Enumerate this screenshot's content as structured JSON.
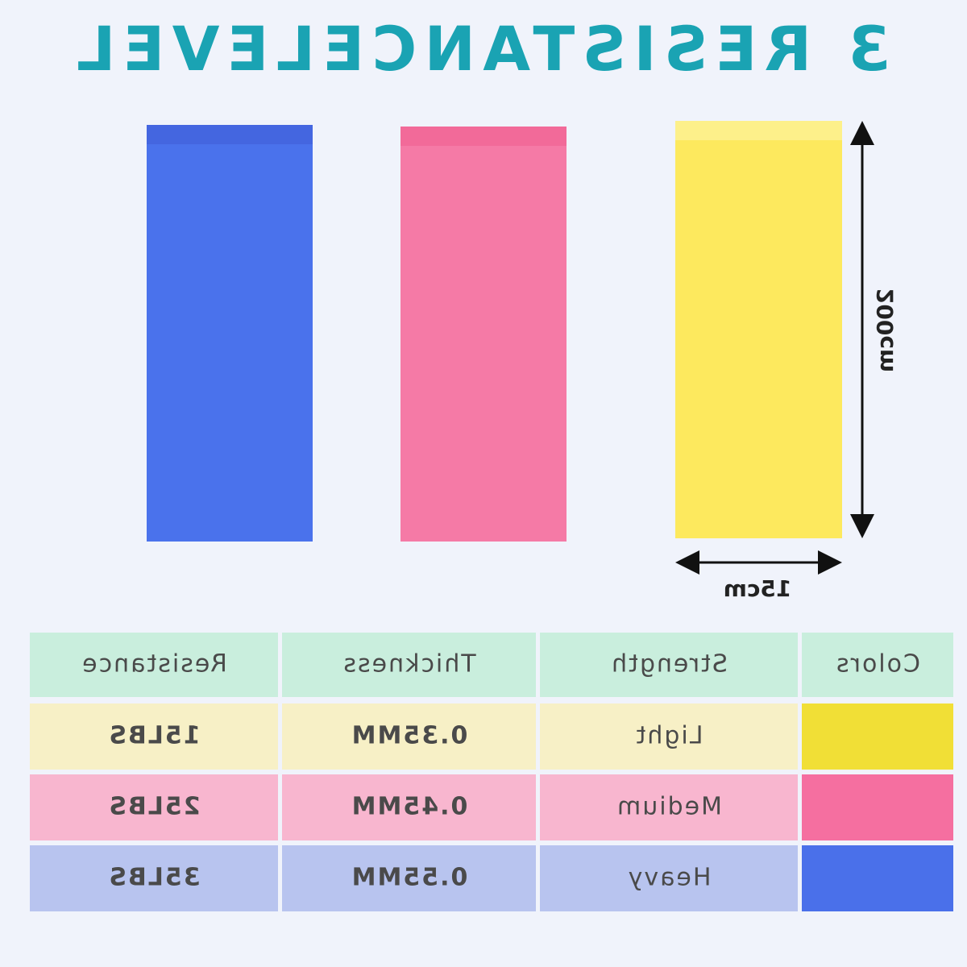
{
  "header": {
    "title": "3 RESISTANCELEVEL"
  },
  "dimensions": {
    "height": "200cm",
    "width": "15cm"
  },
  "table": {
    "header": [
      "Colors",
      "Strength",
      "Thickness",
      "Resistance"
    ],
    "rows": [
      [
        "Light",
        "0.35MM",
        "15LBS"
      ],
      [
        "Medium",
        "0.45MM",
        "25LBS"
      ],
      [
        "Heavy",
        "0.55MM",
        "35LBS"
      ]
    ]
  }
}
